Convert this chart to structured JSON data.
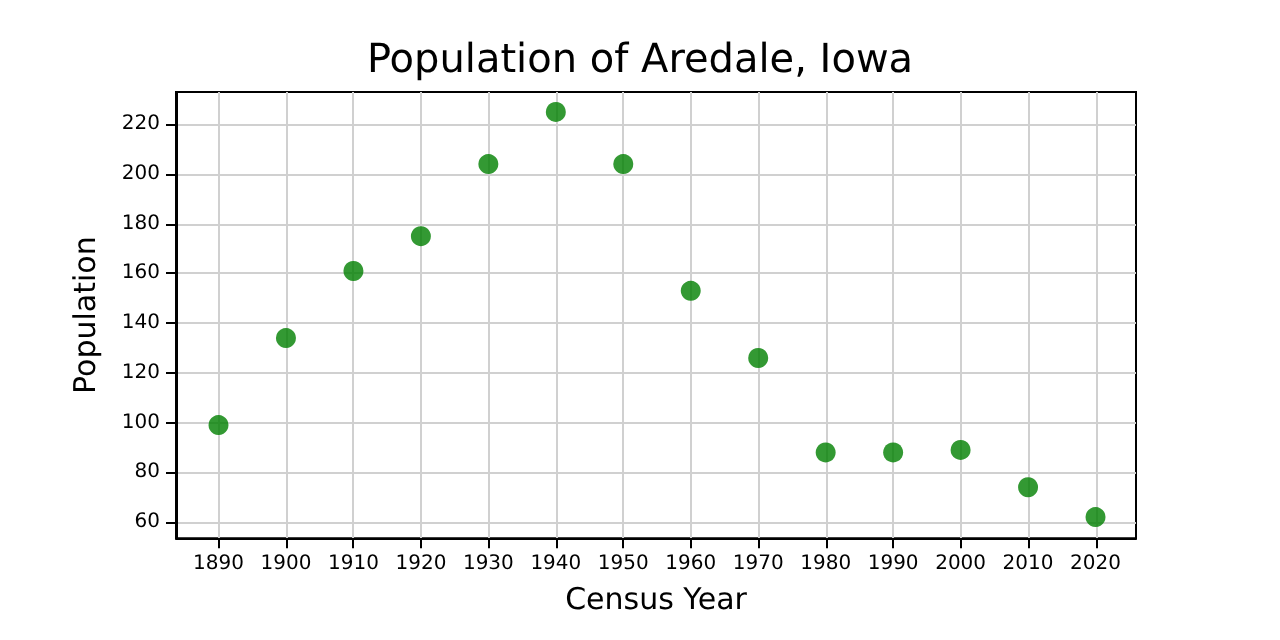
{
  "chart_data": {
    "type": "scatter",
    "title": "Population of Aredale, Iowa",
    "xlabel": "Census Year",
    "ylabel": "Population",
    "x": [
      1890,
      1900,
      1910,
      1920,
      1930,
      1940,
      1950,
      1960,
      1970,
      1980,
      1990,
      2000,
      2010,
      2020
    ],
    "series": [
      {
        "color": "#008000",
        "values": [
          99,
          134,
          161,
          175,
          204,
          225,
          204,
          153,
          126,
          88,
          88,
          89,
          74,
          62
        ]
      }
    ],
    "xlim": [
      1883.7,
      2026
    ],
    "ylim": [
      53.5,
      233
    ],
    "xticks": [
      1890,
      1900,
      1910,
      1920,
      1930,
      1940,
      1950,
      1960,
      1970,
      1980,
      1990,
      2000,
      2010,
      2020
    ],
    "yticks": [
      60,
      80,
      100,
      120,
      140,
      160,
      180,
      200,
      220
    ],
    "grid": true,
    "marker": "circle"
  }
}
